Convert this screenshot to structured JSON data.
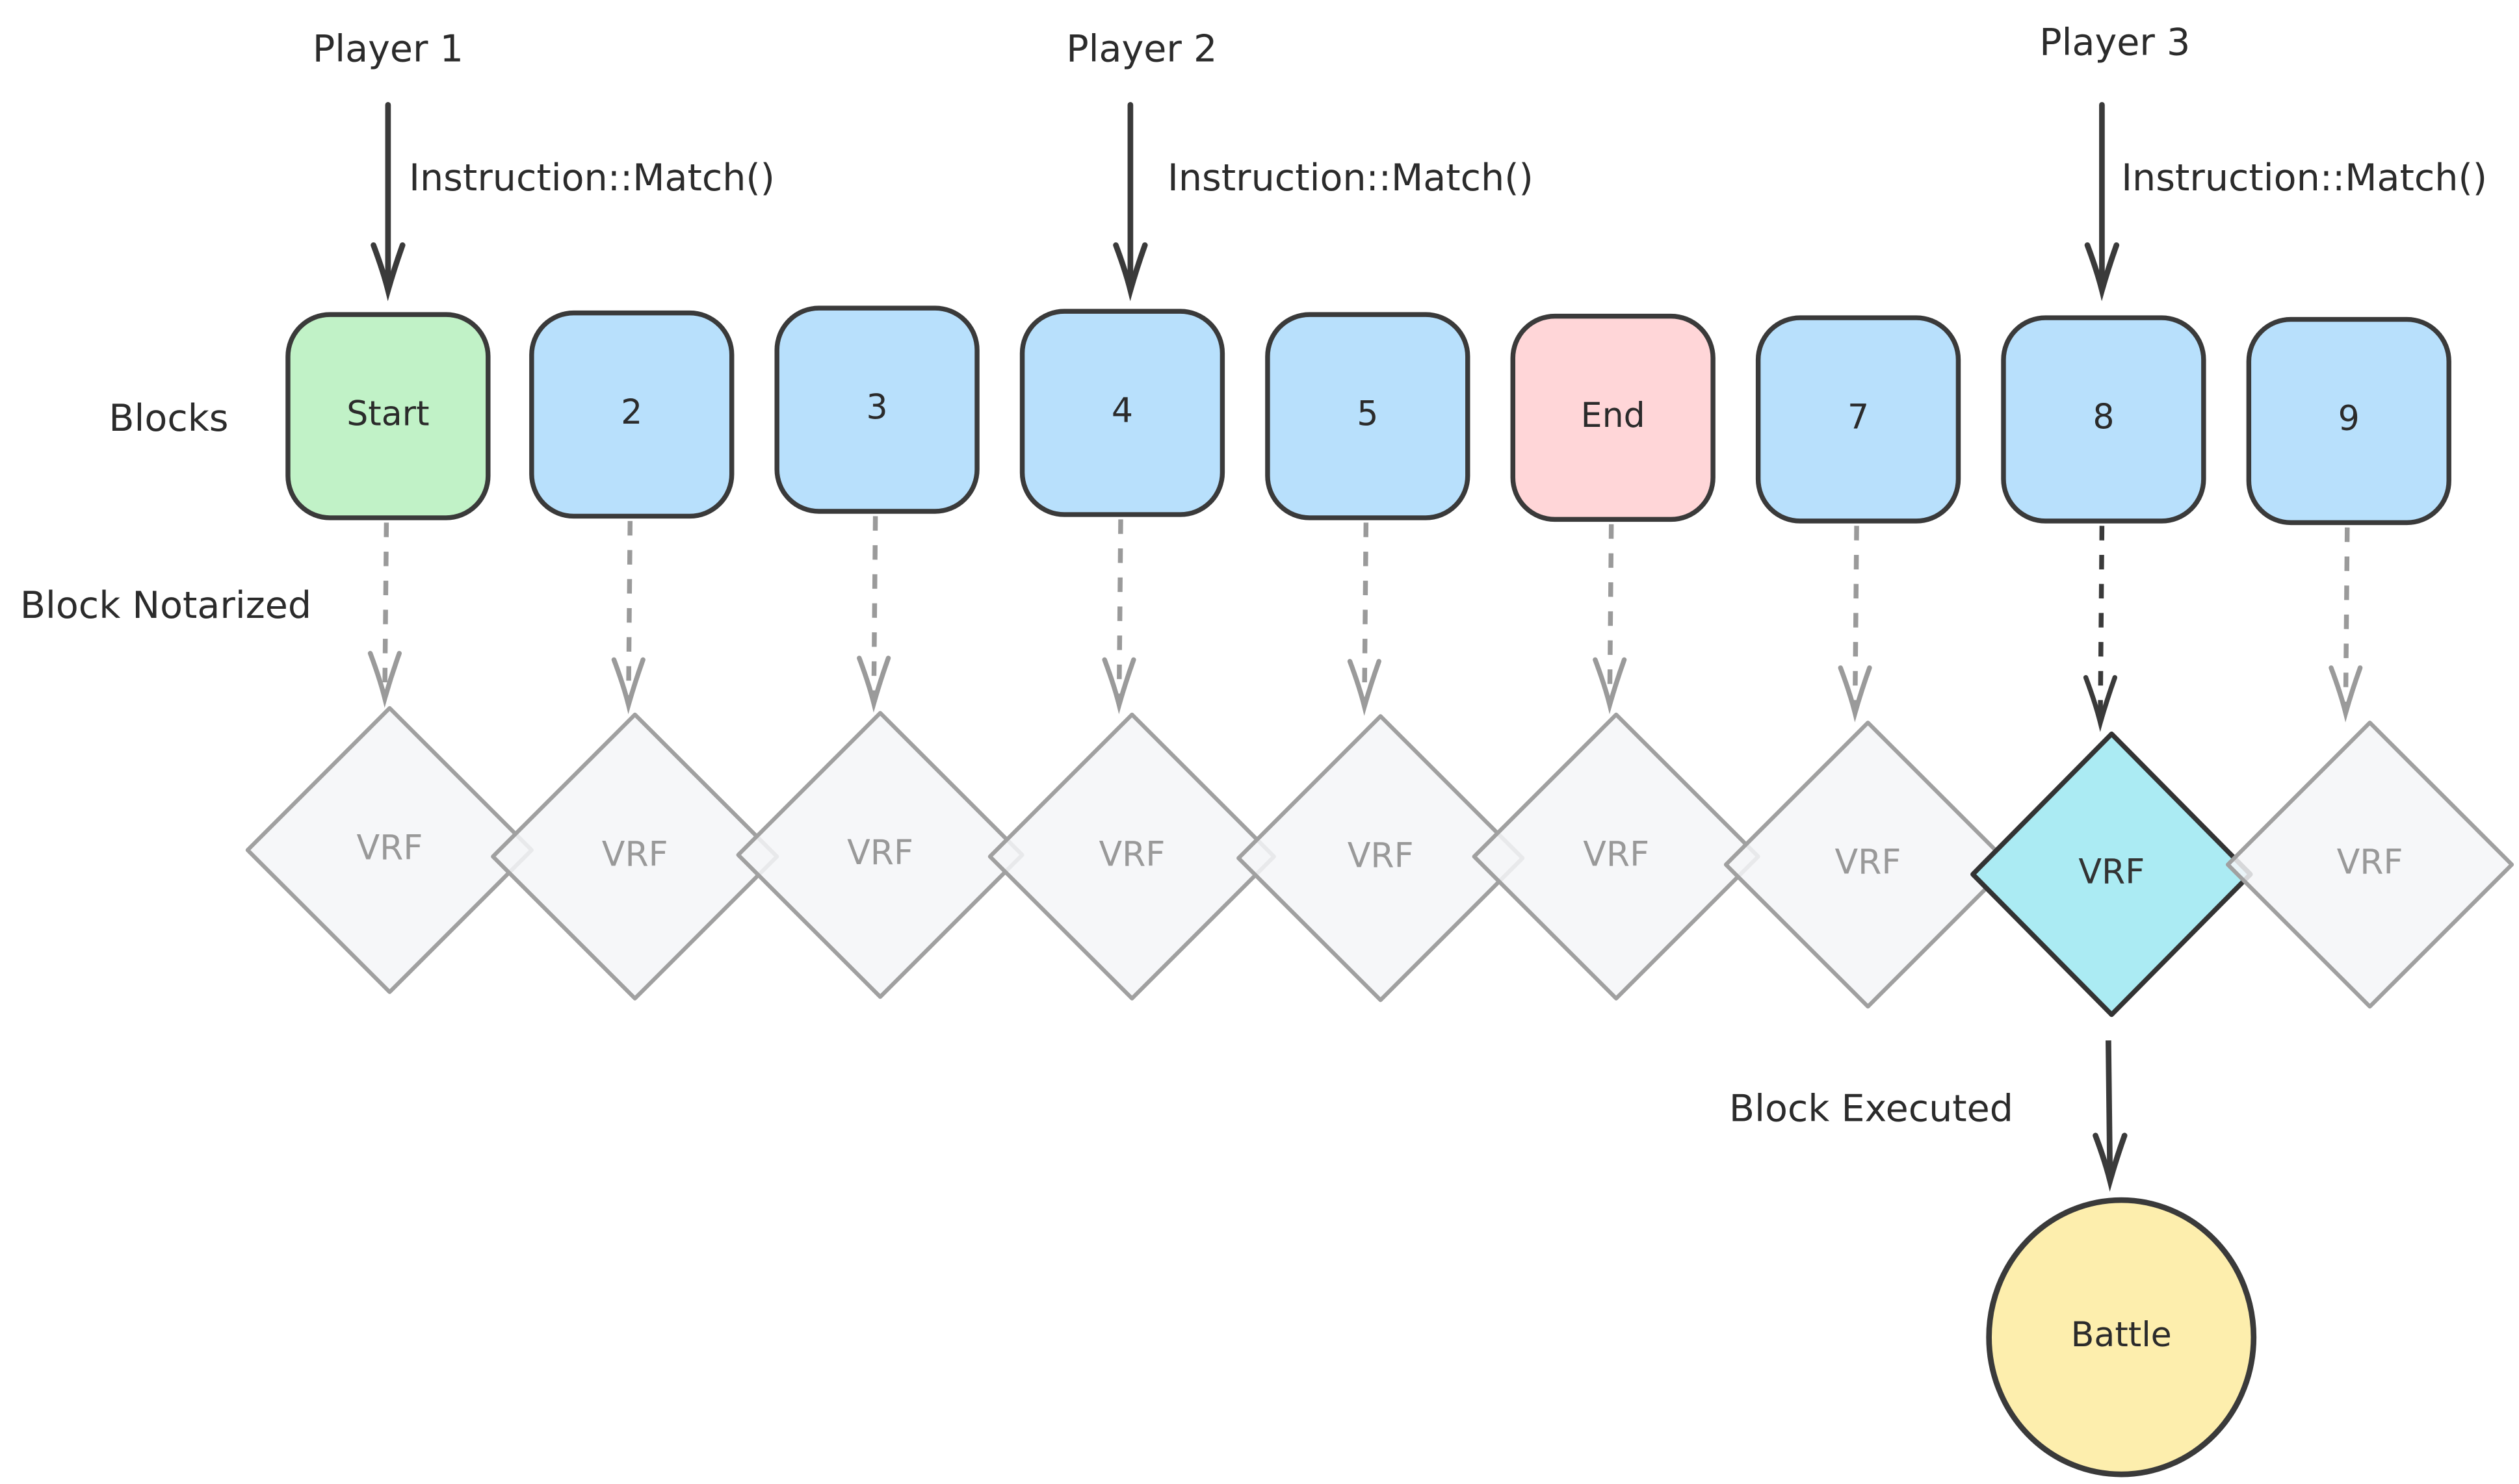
{
  "players": [
    {
      "label": "Player 1",
      "instruction": "Instruction::Match()"
    },
    {
      "label": "Player 2",
      "instruction": "Instruction::Match()"
    },
    {
      "label": "Player 3",
      "instruction": "Instruction::Match()"
    }
  ],
  "row_labels": {
    "blocks": "Blocks",
    "notarized": "Block Notarized",
    "executed": "Block Executed"
  },
  "blocks": [
    {
      "label": "Start",
      "fill": "#c1f2c7"
    },
    {
      "label": "2",
      "fill": "#b8e0fc"
    },
    {
      "label": "3",
      "fill": "#b8e0fc"
    },
    {
      "label": "4",
      "fill": "#b8e0fc"
    },
    {
      "label": "5",
      "fill": "#b8e0fc"
    },
    {
      "label": "End",
      "fill": "#ffd6d8"
    },
    {
      "label": "7",
      "fill": "#b8e0fc"
    },
    {
      "label": "8",
      "fill": "#b8e0fc"
    },
    {
      "label": "9",
      "fill": "#b8e0fc"
    }
  ],
  "vrf": {
    "label": "VRF",
    "inactive_fill": "#f4f6f8",
    "inactive_stroke": "#a0a0a0",
    "active_fill": "#abebf3",
    "active_stroke": "#333333",
    "active_index": 7
  },
  "result": {
    "label": "Battle",
    "fill": "#fdeead"
  },
  "colors": {
    "stroke": "#3a3a3a"
  }
}
